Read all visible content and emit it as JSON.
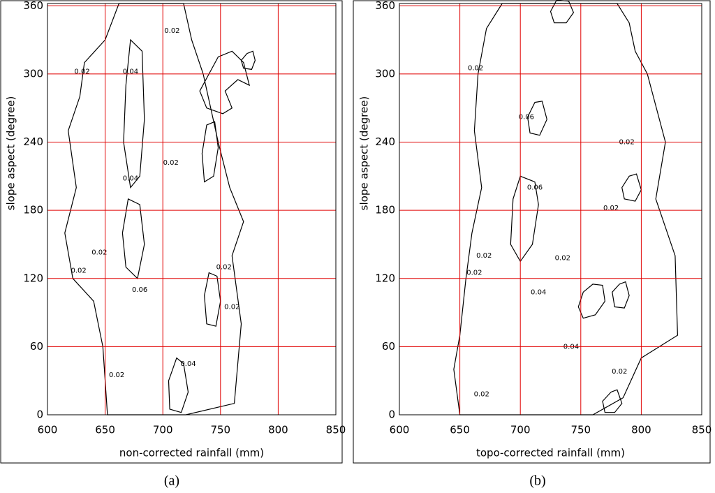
{
  "chart_data": [
    {
      "type": "contour",
      "x_label": "non-corrected rainfall (mm)",
      "y_label": "slope aspect (degree)",
      "panel_label": "(a)",
      "xlim": [
        600,
        850
      ],
      "ylim": [
        0,
        362
      ],
      "xticks": [
        600,
        650,
        700,
        750,
        800,
        850
      ],
      "yticks": [
        0,
        60,
        120,
        180,
        240,
        300,
        360
      ],
      "grid": true,
      "grid_color": "#e00000",
      "line_color": "#000000",
      "contours": [
        {
          "x": [
            662,
            650,
            632,
            628,
            618,
            625,
            615,
            622,
            640,
            648,
            652,
            680,
            720,
            762,
            768,
            760,
            770,
            758,
            748,
            735,
            725,
            718,
            690
          ],
          "y": [
            362,
            330,
            310,
            280,
            250,
            200,
            160,
            120,
            100,
            60,
            0,
            0,
            0,
            10,
            80,
            140,
            170,
            200,
            240,
            300,
            330,
            362,
            362
          ]
        },
        {
          "x": [
            672,
            668,
            666,
            672,
            680,
            684,
            682
          ],
          "y": [
            330,
            290,
            240,
            200,
            210,
            260,
            320
          ]
        },
        {
          "x": [
            670,
            665,
            668,
            678,
            684,
            680
          ],
          "y": [
            190,
            160,
            130,
            120,
            150,
            185
          ]
        },
        {
          "x": [
            712,
            705,
            706,
            716,
            722,
            718
          ],
          "y": [
            50,
            30,
            5,
            2,
            20,
            45
          ]
        },
        {
          "x": [
            738,
            734,
            736,
            744,
            748,
            745
          ],
          "y": [
            255,
            230,
            205,
            210,
            235,
            258
          ]
        },
        {
          "x": [
            740,
            732,
            738,
            752,
            760,
            754,
            765,
            775,
            770,
            760,
            748
          ],
          "y": [
            300,
            285,
            270,
            265,
            270,
            285,
            295,
            290,
            310,
            320,
            315
          ]
        },
        {
          "x": [
            740,
            736,
            738,
            746,
            750,
            747
          ],
          "y": [
            125,
            105,
            80,
            78,
            100,
            122
          ]
        },
        {
          "x": [
            773,
            768,
            770,
            777,
            780,
            778
          ],
          "y": [
            318,
            312,
            305,
            304,
            312,
            320
          ]
        }
      ],
      "annotations": [
        {
          "label": "0.02",
          "x": 627,
          "y": 127
        },
        {
          "label": "0.02",
          "x": 630,
          "y": 302
        },
        {
          "label": "0.04",
          "x": 672,
          "y": 302
        },
        {
          "label": "0.02",
          "x": 708,
          "y": 338
        },
        {
          "label": "0.02",
          "x": 707,
          "y": 222
        },
        {
          "label": "0.02",
          "x": 645,
          "y": 143
        },
        {
          "label": "0.02",
          "x": 753,
          "y": 130
        },
        {
          "label": "0.02",
          "x": 760,
          "y": 95
        },
        {
          "label": "0.02",
          "x": 660,
          "y": 35
        },
        {
          "label": "0.04",
          "x": 672,
          "y": 208
        },
        {
          "label": "0.06",
          "x": 680,
          "y": 110
        },
        {
          "label": "0.04",
          "x": 722,
          "y": 45
        }
      ]
    },
    {
      "type": "contour",
      "x_label": "topo-corrected rainfall (mm)",
      "y_label": "slope aspect (degree)",
      "panel_label": "(b)",
      "xlim": [
        600,
        850
      ],
      "ylim": [
        0,
        362
      ],
      "xticks": [
        600,
        650,
        700,
        750,
        800,
        850
      ],
      "yticks": [
        0,
        60,
        120,
        180,
        240,
        300,
        360
      ],
      "grid": true,
      "grid_color": "#e00000",
      "line_color": "#000000",
      "contours": [
        {
          "x": [
            685,
            672,
            665,
            662,
            668,
            660,
            655,
            650,
            645,
            650,
            665,
            700,
            760,
            785,
            800,
            830,
            828,
            812,
            820,
            805,
            795,
            790,
            780,
            755,
            720
          ],
          "y": [
            362,
            340,
            300,
            250,
            200,
            160,
            120,
            70,
            40,
            0,
            0,
            0,
            0,
            15,
            50,
            70,
            140,
            190,
            240,
            300,
            320,
            345,
            362,
            362,
            362
          ]
        },
        {
          "x": [
            700,
            694,
            692,
            700,
            710,
            715,
            712
          ],
          "y": [
            210,
            190,
            150,
            135,
            150,
            185,
            205
          ]
        },
        {
          "x": [
            712,
            706,
            708,
            716,
            722,
            718
          ],
          "y": [
            275,
            262,
            248,
            246,
            260,
            276
          ]
        },
        {
          "x": [
            730,
            725,
            728,
            738,
            744,
            740
          ],
          "y": [
            365,
            355,
            345,
            345,
            354,
            364
          ]
        },
        {
          "x": [
            760,
            752,
            748,
            752,
            762,
            770,
            768
          ],
          "y": [
            115,
            108,
            95,
            85,
            88,
            100,
            114
          ]
        },
        {
          "x": [
            782,
            776,
            778,
            786,
            790,
            787
          ],
          "y": [
            115,
            108,
            95,
            94,
            105,
            117
          ]
        },
        {
          "x": [
            790,
            784,
            786,
            795,
            800,
            796
          ],
          "y": [
            210,
            200,
            190,
            188,
            198,
            212
          ]
        },
        {
          "x": [
            775,
            768,
            770,
            778,
            784,
            780
          ],
          "y": [
            20,
            12,
            2,
            2,
            10,
            22
          ]
        }
      ],
      "annotations": [
        {
          "label": "0.02",
          "x": 670,
          "y": 140
        },
        {
          "label": "0.02",
          "x": 662,
          "y": 125
        },
        {
          "label": "0.04",
          "x": 715,
          "y": 108
        },
        {
          "label": "0.06",
          "x": 712,
          "y": 200
        },
        {
          "label": "0.02",
          "x": 788,
          "y": 240
        },
        {
          "label": "0.02",
          "x": 775,
          "y": 182
        },
        {
          "label": "0.02",
          "x": 663,
          "y": 305
        },
        {
          "label": "0.02",
          "x": 668,
          "y": 18
        },
        {
          "label": "0.02",
          "x": 782,
          "y": 38
        },
        {
          "label": "0.04",
          "x": 742,
          "y": 60
        },
        {
          "label": "0.02",
          "x": 735,
          "y": 138
        },
        {
          "label": "0.06",
          "x": 705,
          "y": 262
        }
      ]
    }
  ]
}
